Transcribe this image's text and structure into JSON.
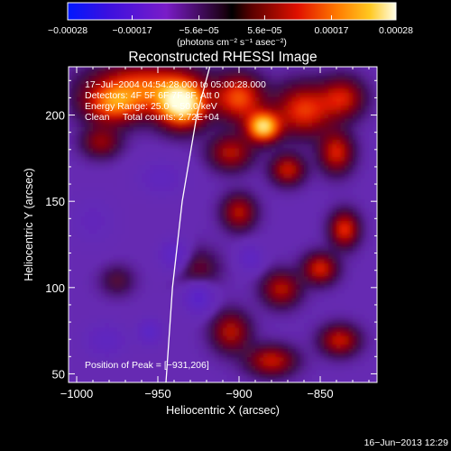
{
  "chart_data": {
    "type": "heatmap",
    "title": "Reconstructed RHESSI Image",
    "xlabel": "Heliocentric X (arcsec)",
    "ylabel": "Heliocentric Y (arcsec)",
    "xlim": [
      -1005,
      -815
    ],
    "ylim": [
      45,
      228
    ],
    "x_ticks": [
      -1000,
      -950,
      -900,
      -850
    ],
    "x_tick_labels": [
      "−1000",
      "−950",
      "−900",
      "−850"
    ],
    "y_ticks": [
      50,
      100,
      150,
      200
    ],
    "y_tick_labels": [
      "50",
      "100",
      "150",
      "200"
    ],
    "colorbar": {
      "range": [
        -0.00028,
        0.00028
      ],
      "ticks": [
        -0.00028,
        -0.00017,
        -5.6e-05,
        5.6e-05,
        0.00017,
        0.00028
      ],
      "tick_labels": [
        "−0.00028",
        "−0.00017",
        "−5.6e−05",
        "5.6e−05",
        "0.00017",
        "0.00028"
      ],
      "units": "(photons cm⁻² s⁻¹ asec⁻²)"
    },
    "info_lines": [
      "17−Jul−2004 04:54:28.000 to 05:00:28.000",
      "Detectors: 4F 5F 6F 7F 8F, Att 0",
      "Energy Range: 25.0 − 50.0 keV",
      "Clean     Total counts: 2.72E+04"
    ],
    "peak_label": "Position of Peak = [−931,206]",
    "peak": {
      "x": -931,
      "y": 206
    },
    "date_stamp": "16−Jun−2013 12:29",
    "limb": [
      [
        -945,
        45
      ],
      [
        -941,
        100
      ],
      [
        -935,
        150
      ],
      [
        -926,
        200
      ],
      [
        -918,
        228
      ]
    ],
    "sources": [
      {
        "x": -958,
        "y": 218,
        "sx": 22,
        "sy": 10,
        "a": 0.00016
      },
      {
        "x": -935,
        "y": 208,
        "sx": 10,
        "sy": 9,
        "a": 0.00026
      },
      {
        "x": -978,
        "y": 208,
        "sx": 12,
        "sy": 8,
        "a": 0.00014
      },
      {
        "x": -900,
        "y": 212,
        "sx": 10,
        "sy": 9,
        "a": 0.00016
      },
      {
        "x": -885,
        "y": 195,
        "sx": 7,
        "sy": 6,
        "a": 0.00024
      },
      {
        "x": -860,
        "y": 205,
        "sx": 12,
        "sy": 10,
        "a": 0.00015
      },
      {
        "x": -836,
        "y": 212,
        "sx": 9,
        "sy": 8,
        "a": 0.00012
      },
      {
        "x": -905,
        "y": 180,
        "sx": 9,
        "sy": 7,
        "a": 0.00011
      },
      {
        "x": -870,
        "y": 170,
        "sx": 7,
        "sy": 6,
        "a": 0.00012
      },
      {
        "x": -840,
        "y": 180,
        "sx": 7,
        "sy": 8,
        "a": 0.00013
      },
      {
        "x": -985,
        "y": 186,
        "sx": 8,
        "sy": 6,
        "a": 9e-05
      },
      {
        "x": -900,
        "y": 145,
        "sx": 7,
        "sy": 7,
        "a": 0.00011
      },
      {
        "x": -835,
        "y": 135,
        "sx": 6,
        "sy": 7,
        "a": 0.00014
      },
      {
        "x": -850,
        "y": 112,
        "sx": 7,
        "sy": 6,
        "a": 0.00013
      },
      {
        "x": -874,
        "y": 100,
        "sx": 8,
        "sy": 7,
        "a": 0.00011
      },
      {
        "x": -905,
        "y": 75,
        "sx": 8,
        "sy": 8,
        "a": 0.00011
      },
      {
        "x": -880,
        "y": 58,
        "sx": 10,
        "sy": 6,
        "a": 0.00012
      },
      {
        "x": -838,
        "y": 70,
        "sx": 8,
        "sy": 6,
        "a": 0.00012
      },
      {
        "x": -925,
        "y": 112,
        "sx": 9,
        "sy": 8,
        "a": 6e-05
      },
      {
        "x": -975,
        "y": 105,
        "sx": 7,
        "sy": 6,
        "a": 5e-05
      },
      {
        "x": -948,
        "y": 165,
        "sx": 10,
        "sy": 7,
        "a": -6e-05
      },
      {
        "x": -925,
        "y": 95,
        "sx": 6,
        "sy": 6,
        "a": -0.00012
      },
      {
        "x": -940,
        "y": 120,
        "sx": 6,
        "sy": 6,
        "a": -0.0001
      },
      {
        "x": -982,
        "y": 70,
        "sx": 9,
        "sy": 7,
        "a": -7e-05
      },
      {
        "x": -955,
        "y": 75,
        "sx": 5,
        "sy": 5,
        "a": -0.0001
      },
      {
        "x": -893,
        "y": 118,
        "sx": 5,
        "sy": 5,
        "a": -8e-05
      },
      {
        "x": -990,
        "y": 140,
        "sx": 10,
        "sy": 10,
        "a": -4e-05
      }
    ]
  }
}
